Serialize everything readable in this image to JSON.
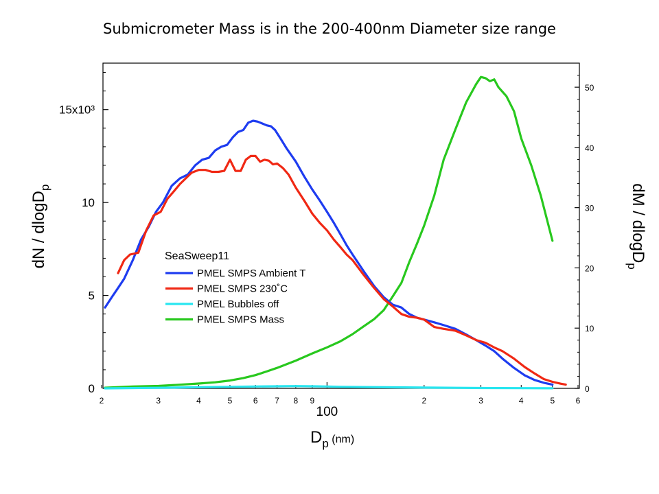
{
  "slide_title": "Submicrometer Mass is in the 200-400nm Diameter size range",
  "chart_data": {
    "type": "line",
    "x_scale": "log",
    "xlim": [
      20,
      600
    ],
    "ylim_left": [
      0,
      17500
    ],
    "ylim_right": [
      0,
      54
    ],
    "x_tick_labels": [
      {
        "x": 20,
        "label": "2"
      },
      {
        "x": 30,
        "label": "3"
      },
      {
        "x": 40,
        "label": "4"
      },
      {
        "x": 50,
        "label": "5"
      },
      {
        "x": 60,
        "label": "6"
      },
      {
        "x": 70,
        "label": "7"
      },
      {
        "x": 80,
        "label": "8"
      },
      {
        "x": 90,
        "label": "9"
      },
      {
        "x": 200,
        "label": "2"
      },
      {
        "x": 300,
        "label": "3"
      },
      {
        "x": 400,
        "label": "4"
      },
      {
        "x": 500,
        "label": "5"
      },
      {
        "x": 600,
        "label": "6"
      }
    ],
    "x_decade_label": {
      "x": 100,
      "label": "100"
    },
    "y_left_ticks": [
      {
        "y": 0,
        "label": "0"
      },
      {
        "y": 5000,
        "label": "5"
      },
      {
        "y": 10000,
        "label": "10"
      },
      {
        "y": 15000,
        "label": "15x10³"
      }
    ],
    "y_right_ticks": [
      {
        "y": 0,
        "label": "0"
      },
      {
        "y": 10,
        "label": "10"
      },
      {
        "y": 20,
        "label": "20"
      },
      {
        "y": 30,
        "label": "30"
      },
      {
        "y": 40,
        "label": "40"
      },
      {
        "y": 50,
        "label": "50"
      }
    ],
    "xlabel": {
      "main": "D",
      "sub": "p",
      "unit": " (nm)"
    },
    "ylabel_left": {
      "main": "dN / dlogD",
      "sub": "p"
    },
    "ylabel_right": {
      "main": "dM / dlogD",
      "sub": "p"
    },
    "legend": {
      "title": "SeaSweep11",
      "placement": "center-left"
    },
    "series": [
      {
        "name": "PMEL SMPS Ambient T",
        "color": "#1e3cf0",
        "axis": "left",
        "x": [
          20.5,
          21.5,
          22.5,
          23.5,
          25,
          26.5,
          28,
          29.5,
          31,
          33,
          35,
          37,
          39,
          41,
          43,
          45,
          47,
          49,
          51,
          53,
          55,
          57,
          59,
          61,
          63,
          65,
          67,
          69,
          72,
          75,
          80,
          85,
          90,
          95,
          100,
          105,
          110,
          115,
          120,
          130,
          140,
          150,
          160,
          170,
          180,
          190,
          200,
          215,
          230,
          250,
          270,
          290,
          310,
          330,
          350,
          380,
          410,
          440,
          470,
          500
        ],
        "y": [
          4350,
          4900,
          5400,
          5900,
          6900,
          8000,
          8700,
          9500,
          10000,
          10900,
          11300,
          11500,
          12000,
          12300,
          12400,
          12800,
          13000,
          13100,
          13500,
          13800,
          13900,
          14300,
          14400,
          14350,
          14250,
          14150,
          14100,
          13900,
          13400,
          12900,
          12200,
          11400,
          10700,
          10100,
          9500,
          8900,
          8300,
          7700,
          7200,
          6300,
          5500,
          4900,
          4500,
          4350,
          4000,
          3800,
          3700,
          3550,
          3400,
          3200,
          2900,
          2600,
          2300,
          2000,
          1600,
          1100,
          700,
          450,
          300,
          200
        ]
      },
      {
        "name": "PMEL SMPS 230˚C",
        "color": "#f02814",
        "axis": "left",
        "x": [
          22.5,
          23.5,
          24.5,
          26,
          27.5,
          29,
          30.5,
          32,
          33.5,
          35,
          36.5,
          38,
          40,
          42,
          44,
          46,
          48,
          50,
          52,
          54,
          56,
          58,
          60,
          62,
          64,
          66,
          68,
          70,
          73,
          76,
          80,
          85,
          90,
          95,
          100,
          105,
          110,
          115,
          120,
          130,
          140,
          150,
          160,
          170,
          180,
          190,
          200,
          215,
          230,
          250,
          270,
          290,
          310,
          330,
          350,
          380,
          410,
          440,
          470,
          500,
          530,
          550
        ],
        "y": [
          6200,
          6900,
          7200,
          7300,
          8500,
          9300,
          9500,
          10200,
          10600,
          11000,
          11300,
          11600,
          11750,
          11750,
          11650,
          11650,
          11700,
          12300,
          11700,
          11700,
          12300,
          12500,
          12500,
          12200,
          12300,
          12250,
          12050,
          12100,
          11850,
          11500,
          10800,
          10100,
          9400,
          8900,
          8500,
          8000,
          7600,
          7200,
          6900,
          6100,
          5400,
          4800,
          4400,
          4000,
          3850,
          3800,
          3700,
          3300,
          3200,
          3100,
          2850,
          2600,
          2450,
          2200,
          2000,
          1600,
          1150,
          800,
          500,
          350,
          250,
          200
        ]
      },
      {
        "name": "PMEL Bubbles off",
        "color": "#28e6f0",
        "axis": "left",
        "x": [
          20.5,
          30,
          40,
          50,
          60,
          70,
          80,
          90,
          100,
          110,
          150,
          200,
          250,
          300,
          400,
          500
        ],
        "y": [
          0,
          30,
          60,
          80,
          100,
          110,
          120,
          110,
          100,
          80,
          60,
          40,
          30,
          20,
          10,
          5
        ]
      },
      {
        "name": "PMEL SMPS Mass",
        "color": "#28c81e",
        "axis": "right",
        "x": [
          20.5,
          25,
          30,
          35,
          40,
          45,
          50,
          55,
          60,
          65,
          70,
          80,
          90,
          100,
          110,
          120,
          130,
          140,
          150,
          160,
          170,
          180,
          190,
          200,
          215,
          230,
          250,
          270,
          290,
          300,
          310,
          320,
          330,
          340,
          360,
          380,
          400,
          430,
          460,
          500
        ],
        "y": [
          0.1,
          0.3,
          0.4,
          0.6,
          0.8,
          1.0,
          1.3,
          1.7,
          2.2,
          2.8,
          3.4,
          4.6,
          5.8,
          6.8,
          7.8,
          9.0,
          10.3,
          11.5,
          13.0,
          15.3,
          17.5,
          21.0,
          24.0,
          27.0,
          32.0,
          38.0,
          43.0,
          47.5,
          50.5,
          51.7,
          51.5,
          51.0,
          51.3,
          50.0,
          48.5,
          46.0,
          41.5,
          37.0,
          32.0,
          24.5
        ]
      }
    ]
  }
}
